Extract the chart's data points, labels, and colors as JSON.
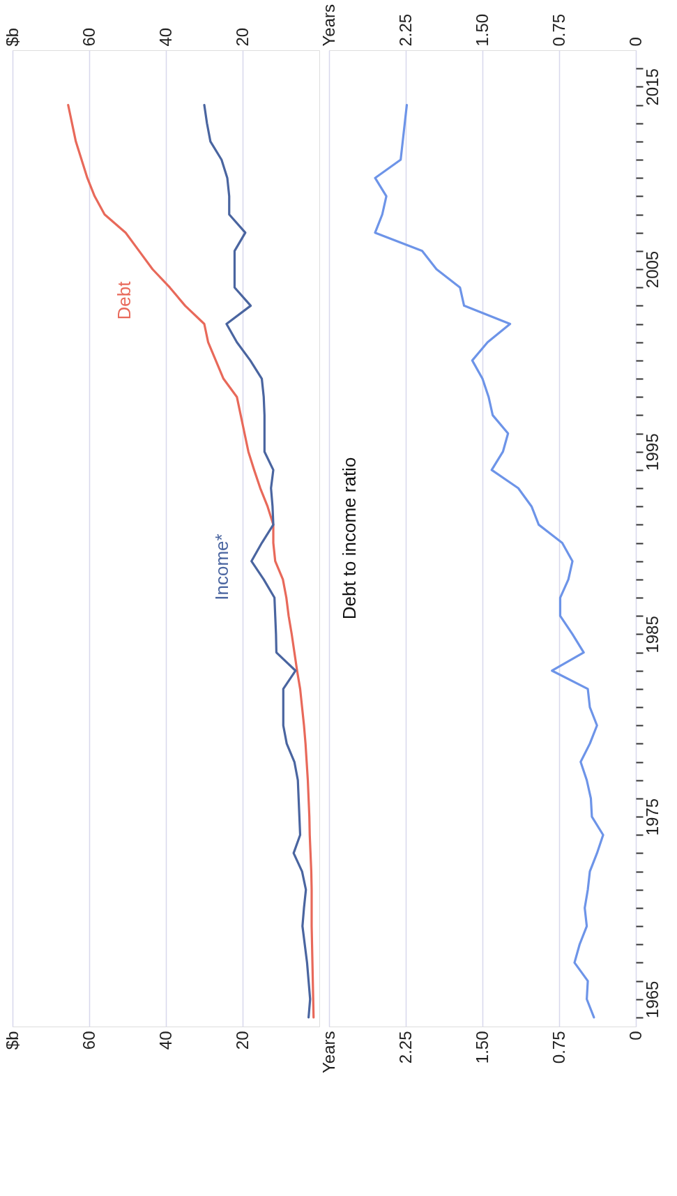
{
  "chart_data": [
    {
      "type": "line",
      "ylim": [
        1963.5,
        2017
      ],
      "xlim": [
        80,
        0
      ],
      "xticks": [
        {
          "value": 80,
          "label": "$b"
        },
        60,
        40,
        20
      ],
      "x2lim": [
        80,
        0
      ],
      "x2ticks": [
        {
          "value": 80,
          "label": "$b"
        },
        60,
        40,
        20
      ],
      "grid": "x",
      "tick_labels": "x",
      "legend": false,
      "marker": "none",
      "line_style": "solid",
      "series": [
        {
          "name": "Debt",
          "color": "#e8695a",
          "x": [
            1.5,
            1.6,
            1.7,
            1.8,
            1.9,
            2.0,
            2.0,
            2.0,
            2.1,
            2.3,
            2.5,
            2.6,
            2.8,
            3.0,
            3.3,
            3.6,
            4.0,
            4.5,
            5.0,
            5.8,
            6.5,
            7.2,
            8.0,
            8.6,
            9.5,
            11.5,
            12.0,
            12.0,
            13.5,
            15.4,
            17.0,
            18.5,
            19.5,
            20.5,
            21.5,
            25.0,
            27.0,
            29.0,
            30.0,
            35.0,
            39.0,
            43.5,
            47.0,
            50.5,
            56.0,
            58.6,
            60.5,
            62.0,
            63.5,
            64.5,
            65.5
          ],
          "values": [
            1964,
            1965,
            1966,
            1967,
            1968,
            1969,
            1970,
            1971,
            1972,
            1973,
            1974,
            1975,
            1976,
            1977,
            1978,
            1979,
            1980,
            1981,
            1982,
            1983,
            1984,
            1985,
            1986,
            1987,
            1988,
            1989,
            1990,
            1991,
            1992,
            1993,
            1994,
            1995,
            1996,
            1997,
            1998,
            1999,
            2000,
            2001,
            2002,
            2003,
            2004,
            2005,
            2006,
            2007,
            2008,
            2009,
            2010,
            2011,
            2012,
            2013,
            2014
          ]
        },
        {
          "name": "Income*",
          "color": "#4a65a0",
          "x": [
            2.8,
            2.4,
            2.8,
            3.2,
            3.8,
            4.4,
            4.0,
            3.5,
            4.5,
            6.7,
            5.0,
            5.2,
            5.4,
            5.6,
            6.5,
            8.5,
            9.4,
            9.4,
            9.4,
            6.2,
            11.2,
            11.3,
            11.5,
            11.7,
            14.5,
            17.7,
            15.0,
            12.0,
            12.2,
            12.6,
            12.0,
            14.3,
            14.3,
            14.3,
            14.5,
            15.0,
            18.0,
            21.5,
            24.2,
            17.9,
            22.1,
            22.1,
            22.1,
            19.3,
            23.5,
            23.5,
            24.0,
            25.5,
            28.4,
            29.3,
            30.0
          ],
          "values": [
            1964,
            1965,
            1966,
            1967,
            1968,
            1969,
            1970,
            1971,
            1972,
            1973,
            1974,
            1975,
            1976,
            1977,
            1978,
            1979,
            1980,
            1981,
            1982,
            1983,
            1984,
            1985,
            1986,
            1987,
            1988,
            1989,
            1990,
            1991,
            1992,
            1993,
            1994,
            1995,
            1996,
            1997,
            1998,
            1999,
            2000,
            2001,
            2002,
            2003,
            2004,
            2005,
            2006,
            2007,
            2008,
            2009,
            2010,
            2011,
            2012,
            2013,
            2014
          ]
        }
      ]
    },
    {
      "type": "line",
      "title": "Debt to income ratio",
      "ylim": [
        1963.5,
        2017
      ],
      "xlim": [
        3,
        0
      ],
      "xticks": [
        {
          "value": 3,
          "label": "Years"
        },
        2.25,
        {
          "value": 1.5,
          "label": "1.50"
        },
        0.75,
        0
      ],
      "x2lim": [
        3,
        0
      ],
      "x2ticks": [
        {
          "value": 3,
          "label": "Years"
        },
        2.25,
        {
          "value": 1.5,
          "label": "1.50"
        },
        0.75,
        0
      ],
      "grid": "x",
      "legend": false,
      "marker": "none",
      "line_style": "solid",
      "yticks": [
        {
          "value": 1964,
          "label": null
        },
        1965,
        {
          "value": 1966,
          "label": null
        },
        {
          "value": 1967,
          "label": null
        },
        {
          "value": 1968,
          "label": null
        },
        {
          "value": 1969,
          "label": null
        },
        {
          "value": 1970,
          "label": null
        },
        {
          "value": 1971,
          "label": null
        },
        {
          "value": 1972,
          "label": null
        },
        {
          "value": 1973,
          "label": null
        },
        {
          "value": 1974,
          "label": null
        },
        1975,
        {
          "value": 1976,
          "label": null
        },
        {
          "value": 1977,
          "label": null
        },
        {
          "value": 1978,
          "label": null
        },
        {
          "value": 1979,
          "label": null
        },
        {
          "value": 1980,
          "label": null
        },
        {
          "value": 1981,
          "label": null
        },
        {
          "value": 1982,
          "label": null
        },
        {
          "value": 1983,
          "label": null
        },
        {
          "value": 1984,
          "label": null
        },
        1985,
        {
          "value": 1986,
          "label": null
        },
        {
          "value": 1987,
          "label": null
        },
        {
          "value": 1988,
          "label": null
        },
        {
          "value": 1989,
          "label": null
        },
        {
          "value": 1990,
          "label": null
        },
        {
          "value": 1991,
          "label": null
        },
        {
          "value": 1992,
          "label": null
        },
        {
          "value": 1993,
          "label": null
        },
        {
          "value": 1994,
          "label": null
        },
        1995,
        {
          "value": 1996,
          "label": null
        },
        {
          "value": 1997,
          "label": null
        },
        {
          "value": 1998,
          "label": null
        },
        {
          "value": 1999,
          "label": null
        },
        {
          "value": 2000,
          "label": null
        },
        {
          "value": 2001,
          "label": null
        },
        {
          "value": 2002,
          "label": null
        },
        {
          "value": 2003,
          "label": null
        },
        {
          "value": 2004,
          "label": null
        },
        2005,
        {
          "value": 2006,
          "label": null
        },
        {
          "value": 2007,
          "label": null
        },
        {
          "value": 2008,
          "label": null
        },
        {
          "value": 2009,
          "label": null
        },
        {
          "value": 2010,
          "label": null
        },
        {
          "value": 2011,
          "label": null
        },
        {
          "value": 2012,
          "label": null
        },
        {
          "value": 2013,
          "label": null
        },
        {
          "value": 2014,
          "label": null
        },
        2015,
        {
          "value": 2016,
          "label": null
        }
      ],
      "series": [
        {
          "color": "#6d94e8",
          "x": [
            0.41,
            0.48,
            0.47,
            0.6,
            0.55,
            0.48,
            0.5,
            0.47,
            0.45,
            0.38,
            0.32,
            0.43,
            0.44,
            0.48,
            0.54,
            0.45,
            0.38,
            0.45,
            0.47,
            0.82,
            0.51,
            0.62,
            0.74,
            0.74,
            0.66,
            0.62,
            0.72,
            0.95,
            1.02,
            1.15,
            1.41,
            1.3,
            1.25,
            1.4,
            1.44,
            1.5,
            1.6,
            1.45,
            1.23,
            1.68,
            1.72,
            1.95,
            2.09,
            2.55,
            2.48,
            2.44,
            2.55,
            2.3,
            2.28,
            2.26,
            2.24
          ],
          "values": [
            1964,
            1965,
            1966,
            1967,
            1968,
            1969,
            1970,
            1971,
            1972,
            1973,
            1974,
            1975,
            1976,
            1977,
            1978,
            1979,
            1980,
            1981,
            1982,
            1983,
            1984,
            1985,
            1986,
            1987,
            1988,
            1989,
            1990,
            1991,
            1992,
            1993,
            1994,
            1995,
            1996,
            1997,
            1998,
            1999,
            2000,
            2001,
            2002,
            2003,
            2004,
            2005,
            2006,
            2007,
            2008,
            2009,
            2010,
            2011,
            2012,
            2013,
            2014
          ]
        }
      ]
    }
  ]
}
